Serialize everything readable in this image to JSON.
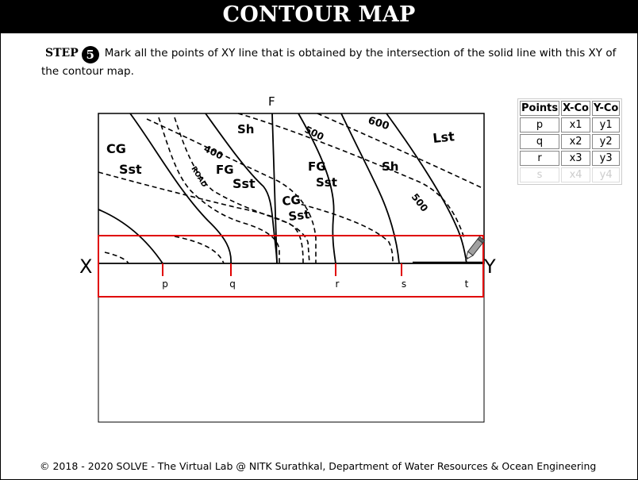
{
  "header": {
    "title": "CONTOUR MAP"
  },
  "instruction": {
    "step_label": "STEP",
    "step_number": "5",
    "text": "Mark all the points of XY line that is obtained by the intersection of the solid line with this XY of the contour map."
  },
  "map": {
    "top_label": "F",
    "left_end_label": "X",
    "right_end_label": "Y",
    "formation_labels": [
      "CG",
      "Sst",
      "400",
      "ROAD",
      "FG",
      "Sst",
      "Sh",
      "500",
      "600",
      "Lst",
      "FG",
      "Sst",
      "Sh",
      "CG",
      "Sst",
      "500"
    ],
    "points": [
      "p",
      "q",
      "r",
      "s",
      "t"
    ]
  },
  "points_table": {
    "headers": [
      "Points",
      "X-Co",
      "Y-Co"
    ],
    "rows": [
      [
        "p",
        "x1",
        "y1"
      ],
      [
        "q",
        "x2",
        "y2"
      ],
      [
        "r",
        "x3",
        "y3"
      ],
      [
        "s",
        "x4",
        "y4"
      ]
    ]
  },
  "footer": {
    "text": "© 2018 - 2020 SOLVE - The Virtual Lab @ NITK Surathkal, Department of Water Resources & Ocean Engineering"
  }
}
